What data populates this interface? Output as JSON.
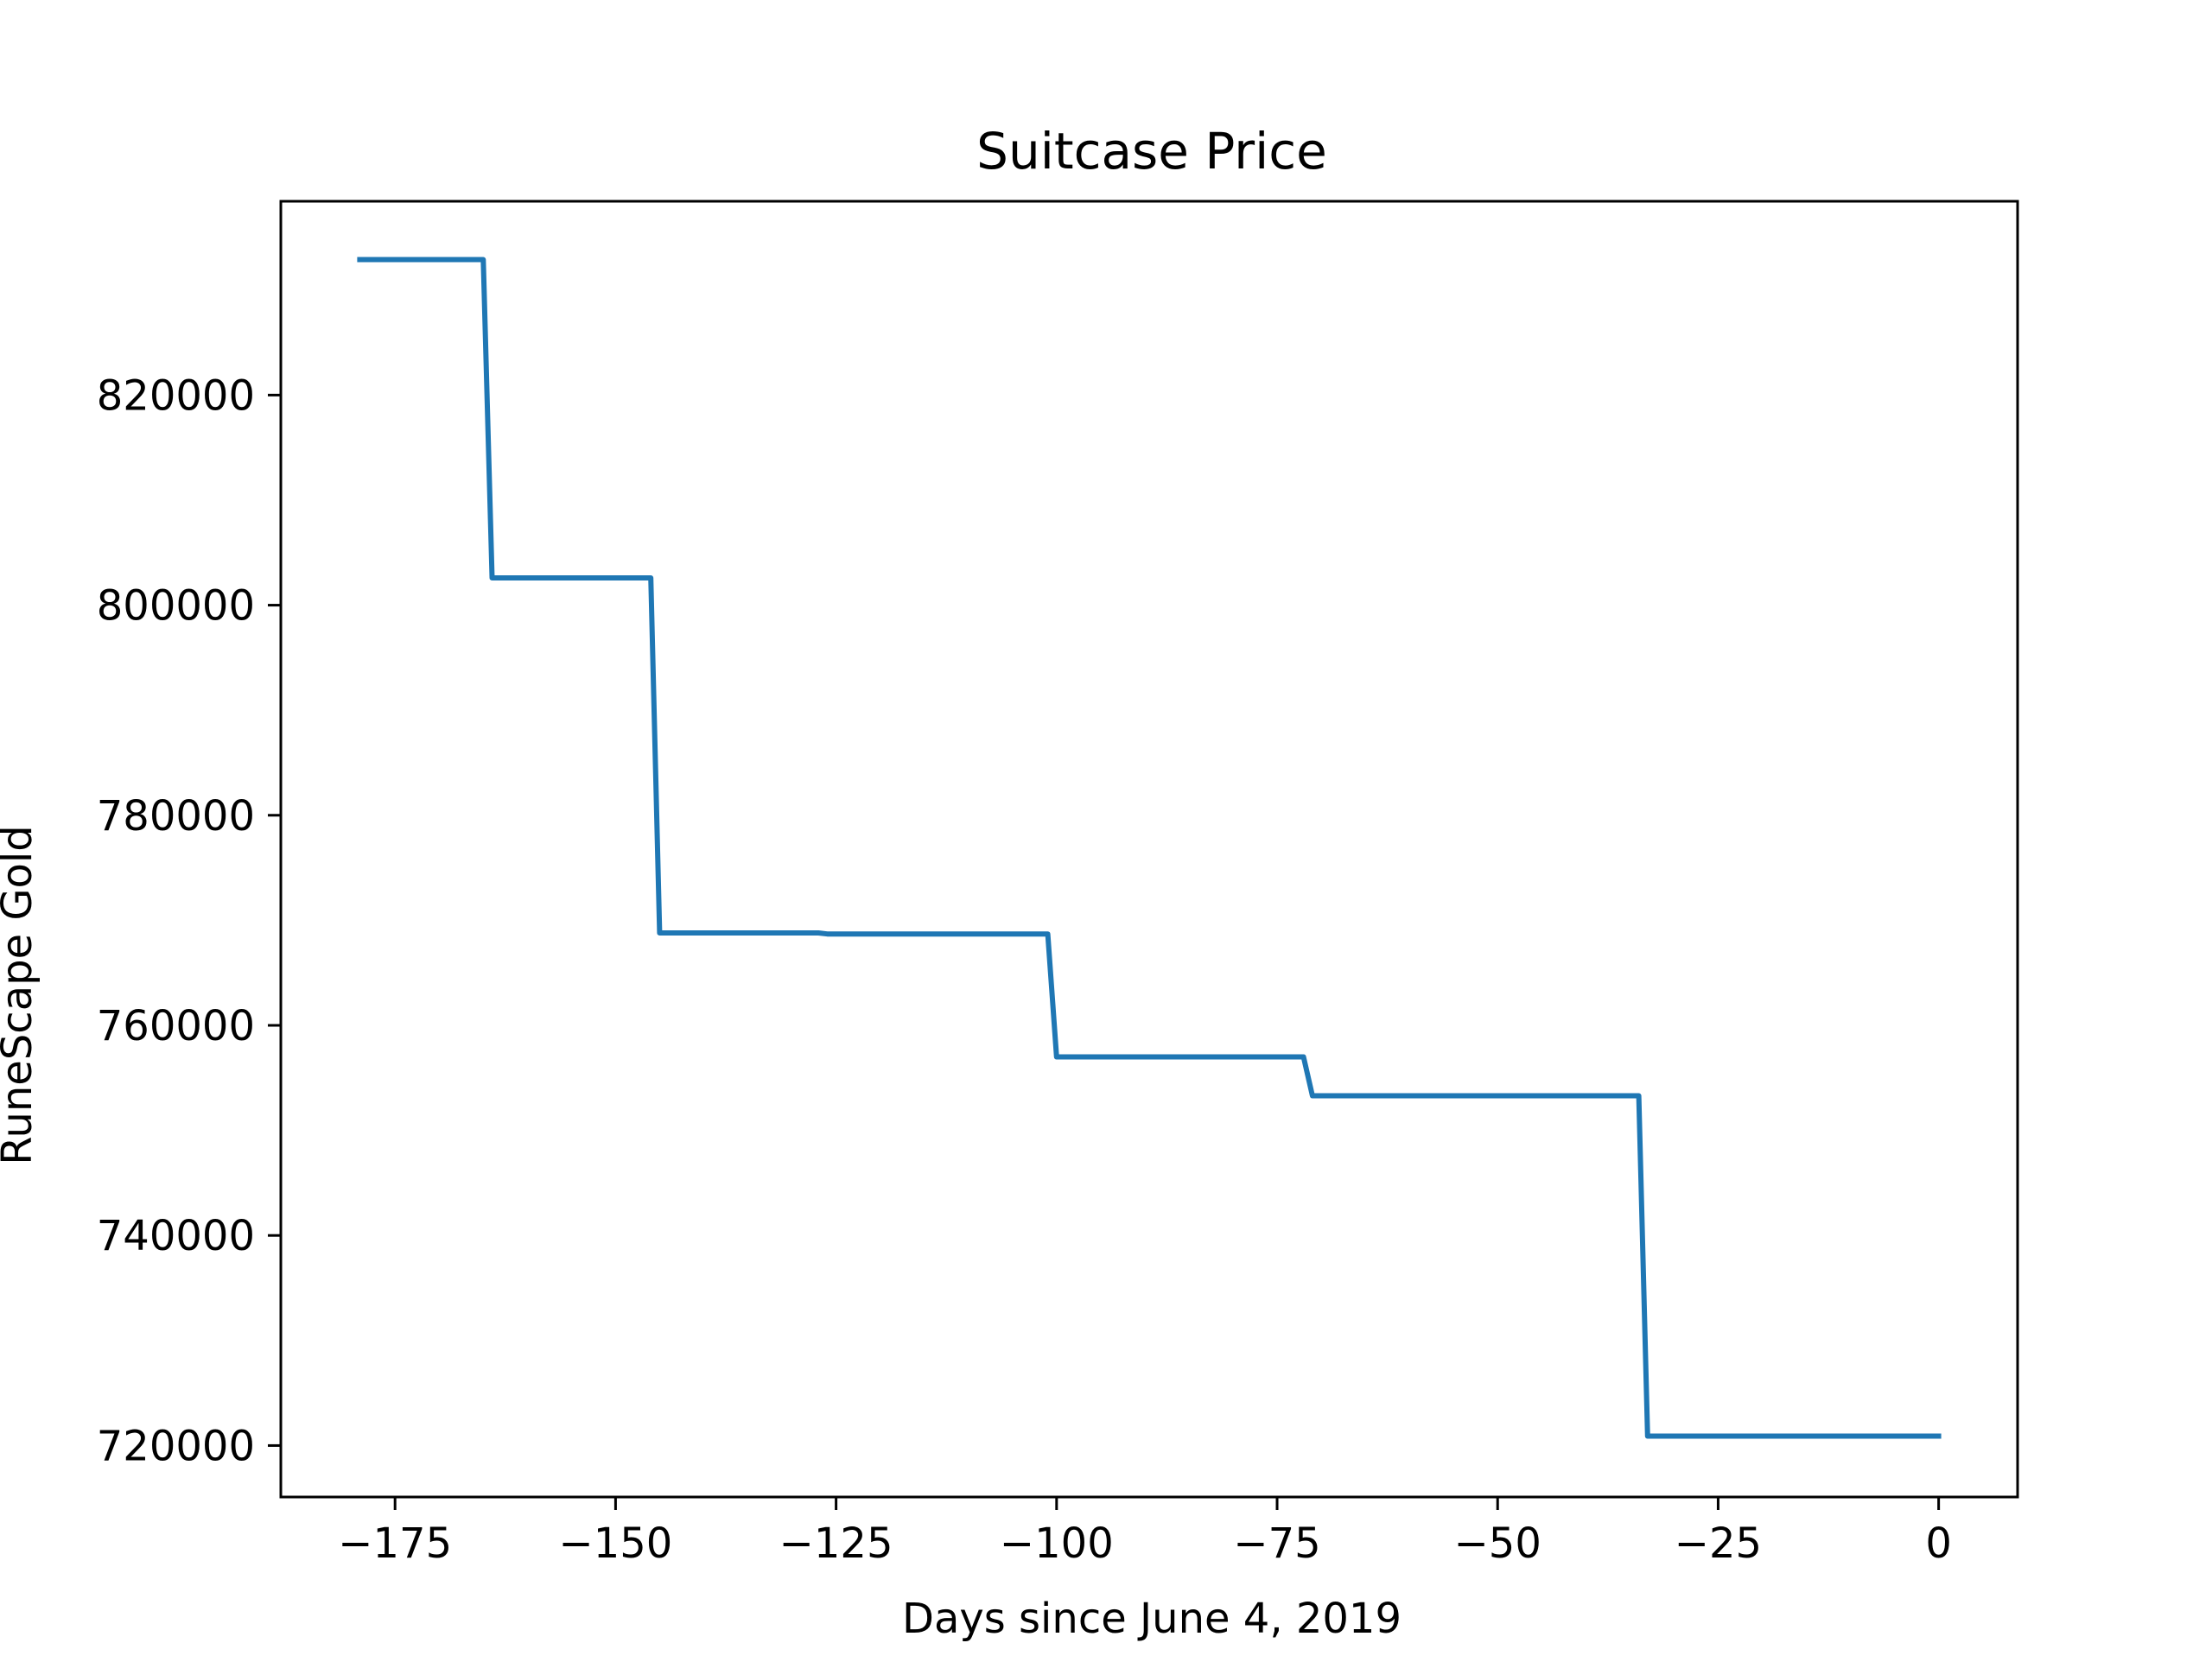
{
  "chart_data": {
    "type": "line",
    "title": "Suitcase Price",
    "xlabel": "Days since June 4, 2019",
    "ylabel": "RuneScape Gold",
    "xlim": [
      -187.95,
      8.95
    ],
    "ylim": [
      715100,
      838450
    ],
    "x_ticks": [
      -175,
      -150,
      -125,
      -100,
      -75,
      -50,
      -25,
      0
    ],
    "x_tick_labels": [
      "−175",
      "−150",
      "−125",
      "−100",
      "−75",
      "−50",
      "−25",
      "0"
    ],
    "y_ticks": [
      720000,
      740000,
      760000,
      780000,
      800000,
      820000
    ],
    "y_tick_labels": [
      "720000",
      "740000",
      "760000",
      "780000",
      "800000",
      "820000"
    ],
    "grid": false,
    "legend": "none",
    "series": [
      {
        "color": "#1f77b4",
        "x": [
          -179,
          -165,
          -164,
          -146,
          -145,
          -127,
          -126,
          -101,
          -100,
          -72,
          -71,
          -34,
          -33,
          0
        ],
        "y": [
          832900,
          832900,
          802600,
          802600,
          768800,
          768800,
          768700,
          768700,
          757000,
          757000,
          753300,
          753300,
          720900,
          720900
        ]
      }
    ]
  }
}
